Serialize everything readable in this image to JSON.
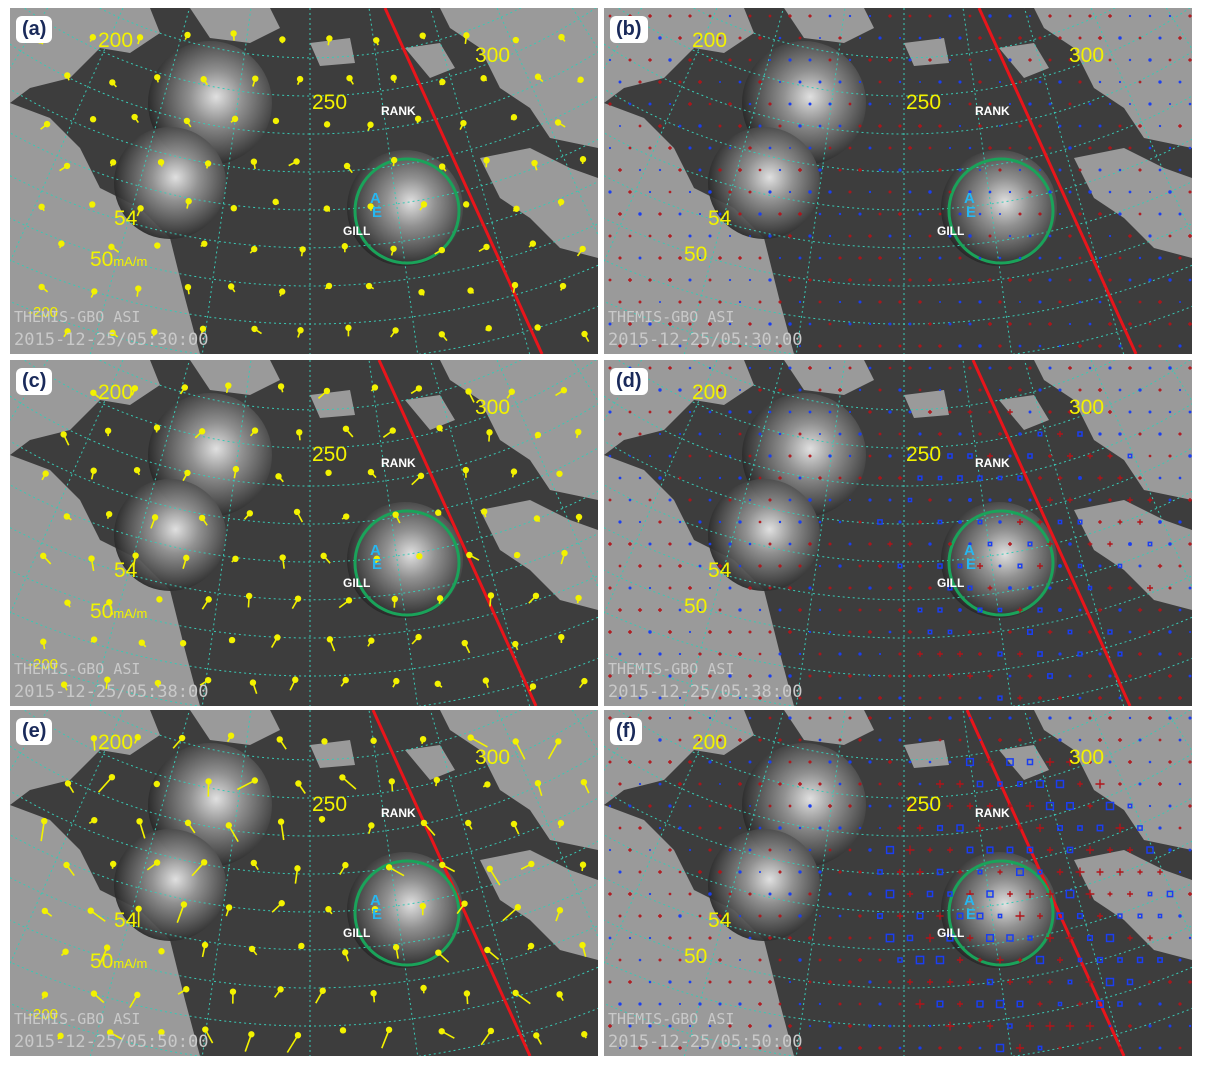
{
  "figure": {
    "panels": [
      {
        "label": "(a)",
        "kind": "vector",
        "timestamp": "2015-12-25/05:30:00",
        "scale": "50",
        "scale_unit": "mA/m",
        "grid": {
          "lat_54": "54",
          "lat_50": "",
          "lon_200": "200",
          "lon_250": "250",
          "lon_300": "300",
          "neg": "-200"
        }
      },
      {
        "label": "(b)",
        "kind": "scalar",
        "timestamp": "2015-12-25/05:30:00",
        "scale": "",
        "scale_unit": "",
        "grid": {
          "lat_54": "54",
          "lat_50": "50",
          "lon_200": "200",
          "lon_250": "250",
          "lon_300": "300",
          "neg": ""
        }
      },
      {
        "label": "(c)",
        "kind": "vector",
        "timestamp": "2015-12-25/05:38:00",
        "scale": "50",
        "scale_unit": "mA/m",
        "grid": {
          "lat_54": "54",
          "lat_50": "",
          "lon_200": "200",
          "lon_250": "250",
          "lon_300": "300",
          "neg": "-200"
        }
      },
      {
        "label": "(d)",
        "kind": "scalar",
        "timestamp": "2015-12-25/05:38:00",
        "scale": "",
        "scale_unit": "",
        "grid": {
          "lat_54": "54",
          "lat_50": "50",
          "lon_200": "200",
          "lon_250": "250",
          "lon_300": "300",
          "neg": ""
        }
      },
      {
        "label": "(e)",
        "kind": "vector",
        "timestamp": "2015-12-25/05:50:00",
        "scale": "50",
        "scale_unit": "mA/m",
        "grid": {
          "lat_54": "54",
          "lat_50": "",
          "lon_200": "200",
          "lon_250": "250",
          "lon_300": "300",
          "neg": "-200"
        }
      },
      {
        "label": "(f)",
        "kind": "scalar",
        "timestamp": "2015-12-25/05:50:00",
        "scale": "",
        "scale_unit": "",
        "grid": {
          "lat_54": "54",
          "lat_50": "50",
          "lon_200": "200",
          "lon_250": "250",
          "lon_300": "300",
          "neg": ""
        }
      }
    ],
    "instrument": "THEMIS-GBO ASI",
    "stations": {
      "rank": "RANK",
      "gill": "GILL"
    },
    "satellite_markers": {
      "top": "A",
      "bottom": "E"
    },
    "colors": {
      "ocean": "#3d3d3d",
      "land": "#9a9a9a",
      "vectors": "#f3f200",
      "grid": "#39c9b5",
      "meridian_line": "#e8151b",
      "circle": "#1aa35a",
      "positive": "#b2141a",
      "negative": "#1b3ef0"
    }
  }
}
